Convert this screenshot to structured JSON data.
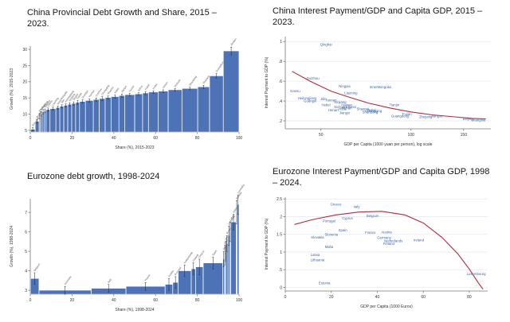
{
  "colors": {
    "bar_fill": "#4d73b6",
    "bar_stroke": "#ffffff",
    "error_bar": "#2a2a2a",
    "scatter_label": "#3b66ad",
    "fit_curve": "#b5293e",
    "axis": "#7a7a7a",
    "grid": "#e4e9f1",
    "tick_text": "#333333",
    "bar_label": "#555555",
    "title_text": "#161616"
  },
  "chart_data": [
    {
      "type": "bar",
      "title": "China Provincial Debt Growth and Share, 2015 – 2023.",
      "xlabel": "Share (%), 2015-2023",
      "ylabel": "Growth (%), 2015-2023",
      "xlim": [
        0,
        100
      ],
      "ylim": [
        4.5,
        31
      ],
      "xticks": [
        0,
        20,
        40,
        60,
        80,
        100
      ],
      "yticks": [
        5,
        10,
        15,
        20,
        25,
        30
      ],
      "categories": [
        "Shanghai",
        "Beijing",
        "Tibet",
        "Hainan",
        "Ningxia",
        "Qinghai",
        "Gansu",
        "Liaoning",
        "InnerMongolia",
        "Jilin",
        "Heilongjiang",
        "Xinjiang",
        "Shanxi",
        "Tianjin",
        "Guangxi",
        "Yunnan",
        "Guizhou",
        "Chongqing",
        "Shaanxi",
        "Hebei",
        "Jiangxi",
        "Hunan",
        "Anhui",
        "Fujian",
        "Hubei",
        "Henan",
        "Sichuan",
        "Shandong",
        "Zhejiang",
        "Guangdong",
        "Jiangsu"
      ],
      "shares": [
        2.5,
        2,
        0.5,
        1,
        1,
        1,
        2,
        3,
        2,
        2,
        2,
        2,
        2,
        2,
        3,
        4,
        3,
        3,
        3,
        4,
        3,
        5,
        4,
        3,
        5,
        5,
        7,
        8,
        6,
        7,
        8
      ],
      "values": [
        5.3,
        7.8,
        9.4,
        10.1,
        10.7,
        11.0,
        11.4,
        11.7,
        12.0,
        12.4,
        12.7,
        13.0,
        13.3,
        13.6,
        13.9,
        14.2,
        14.5,
        14.8,
        15.1,
        15.4,
        15.7,
        16.0,
        16.2,
        16.5,
        16.8,
        17.1,
        17.5,
        17.9,
        18.4,
        21.8,
        29.5
      ],
      "errors": [
        0.5,
        0.6,
        0.8,
        0.7,
        0.7,
        0.6,
        0.5,
        0.5,
        0.5,
        0.5,
        0.5,
        0.5,
        0.5,
        0.6,
        0.5,
        0.5,
        0.5,
        0.6,
        0.5,
        0.5,
        0.5,
        0.4,
        0.4,
        0.5,
        0.4,
        0.4,
        0.4,
        0.4,
        0.5,
        0.7,
        1.2
      ]
    },
    {
      "type": "scatter",
      "title": "China Interest Payment/GDP and Capita GDP, 2015 – 2023.",
      "xlabel": "GDP per Capita (1000 yuan per person), log scale",
      "ylabel": "Interest Payment to GDP (%)",
      "xlog": true,
      "xlim": [
        38,
        185
      ],
      "ylim": [
        0.12,
        1.05
      ],
      "xticks": [
        50,
        100,
        150
      ],
      "yticks": [
        0.2,
        0.4,
        0.6,
        0.8,
        1
      ],
      "ytick_labels": [
        ".2",
        ".4",
        ".6",
        ".8",
        "1"
      ],
      "points": [
        {
          "label": "Qinghai",
          "x": 52,
          "y": 0.97
        },
        {
          "label": "Guizhou",
          "x": 47,
          "y": 0.63
        },
        {
          "label": "Ningxia",
          "x": 60,
          "y": 0.55
        },
        {
          "label": "InnerMongolia",
          "x": 79,
          "y": 0.54
        },
        {
          "label": "Gansu",
          "x": 41,
          "y": 0.5
        },
        {
          "label": "Liaoning",
          "x": 63,
          "y": 0.48
        },
        {
          "label": "Heilongjiang",
          "x": 45,
          "y": 0.43
        },
        {
          "label": "Jilin",
          "x": 51,
          "y": 0.42
        },
        {
          "label": "Yunnan",
          "x": 54,
          "y": 0.41
        },
        {
          "label": "Guangxi",
          "x": 46,
          "y": 0.4
        },
        {
          "label": "Xinjiang",
          "x": 58,
          "y": 0.39
        },
        {
          "label": "Hainan",
          "x": 61,
          "y": 0.36
        },
        {
          "label": "Hebei",
          "x": 52,
          "y": 0.36
        },
        {
          "label": "Tianjin",
          "x": 88,
          "y": 0.36
        },
        {
          "label": "Shanxi",
          "x": 63,
          "y": 0.34
        },
        {
          "label": "Sichuan",
          "x": 58,
          "y": 0.34
        },
        {
          "label": "Hunan",
          "x": 61,
          "y": 0.33
        },
        {
          "label": "Anhui",
          "x": 59,
          "y": 0.32
        },
        {
          "label": "Shaanxi",
          "x": 69,
          "y": 0.32
        },
        {
          "label": "Henan",
          "x": 55,
          "y": 0.31
        },
        {
          "label": "Hubei",
          "x": 74,
          "y": 0.31
        },
        {
          "label": "Chongqing",
          "x": 75,
          "y": 0.3
        },
        {
          "label": "Shandong",
          "x": 73,
          "y": 0.29
        },
        {
          "label": "Jiangxi",
          "x": 60,
          "y": 0.28
        },
        {
          "label": "Fujian",
          "x": 97,
          "y": 0.27
        },
        {
          "label": "Guangdong",
          "x": 92,
          "y": 0.25
        },
        {
          "label": "Jiangsu",
          "x": 122,
          "y": 0.25
        },
        {
          "label": "Zhejiang",
          "x": 112,
          "y": 0.24
        },
        {
          "label": "Beijing",
          "x": 155,
          "y": 0.22
        },
        {
          "label": "Shanghai",
          "x": 168,
          "y": 0.21
        }
      ],
      "curve": [
        [
          40,
          0.7
        ],
        [
          46,
          0.6
        ],
        [
          54,
          0.5
        ],
        [
          62,
          0.44
        ],
        [
          72,
          0.38
        ],
        [
          85,
          0.33
        ],
        [
          100,
          0.29
        ],
        [
          118,
          0.26
        ],
        [
          140,
          0.24
        ],
        [
          160,
          0.225
        ],
        [
          178,
          0.22
        ]
      ]
    },
    {
      "type": "bar",
      "title": "Eurozone debt growth, 1998-2024",
      "xlabel": "Share (%), 1998-2024",
      "ylabel": "Growth (%), 1998-2024",
      "xlim": [
        0,
        100
      ],
      "ylim": [
        2.8,
        7.7
      ],
      "xticks": [
        0,
        20,
        40,
        60,
        80,
        100
      ],
      "yticks": [
        3,
        4,
        5,
        6,
        7
      ],
      "categories": [
        "Belgium",
        "Germany",
        "Italy",
        "France",
        "Austria",
        "Portugal",
        "Netherlands",
        "Finland",
        "Greece",
        "Spain",
        "Slovenia",
        "Cyprus",
        "Malta",
        "Slovakia",
        "Lithuania",
        "Latvia",
        "Ireland",
        "Estonia",
        "Luxembourg"
      ],
      "shares": [
        4,
        24,
        16,
        18,
        3.5,
        2.5,
        6,
        2,
        3.5,
        9,
        0.8,
        0.4,
        0.2,
        1,
        0.8,
        0.5,
        2.5,
        0.4,
        0.9
      ],
      "values": [
        3.6,
        3.0,
        3.1,
        3.2,
        3.3,
        3.4,
        4.0,
        4.1,
        4.2,
        4.4,
        4.6,
        4.8,
        5.0,
        5.4,
        5.8,
        6.0,
        6.5,
        7.0,
        7.4
      ],
      "errors": [
        0.3,
        0.2,
        0.2,
        0.2,
        0.3,
        0.3,
        0.3,
        0.3,
        0.4,
        0.3,
        0.4,
        0.5,
        0.5,
        0.4,
        0.5,
        0.5,
        0.4,
        0.6,
        0.5
      ]
    },
    {
      "type": "scatter",
      "title": "Eurozone Interest Payment/GDP and Capita GDP, 1998 – 2024.",
      "xlabel": "GDP per Capita (1000 Euros)",
      "ylabel": "Interest Payment to GDP (%)",
      "xlog": false,
      "xlim": [
        0,
        88
      ],
      "ylim": [
        -0.1,
        2.55
      ],
      "xticks": [
        0,
        20,
        40,
        60,
        80
      ],
      "yticks": [
        0,
        0.5,
        1,
        1.5,
        2,
        2.5
      ],
      "ytick_labels": [
        "0",
        ".5",
        "1",
        "1.5",
        "2",
        "2.5"
      ],
      "points": [
        {
          "label": "Greece",
          "x": 22,
          "y": 2.35
        },
        {
          "label": "Italy",
          "x": 31,
          "y": 2.28
        },
        {
          "label": "Belgium",
          "x": 38,
          "y": 2.02
        },
        {
          "label": "Cyprus",
          "x": 27,
          "y": 1.96
        },
        {
          "label": "Portugal",
          "x": 19,
          "y": 1.88
        },
        {
          "label": "Spain",
          "x": 25,
          "y": 1.62
        },
        {
          "label": "Austria",
          "x": 44,
          "y": 1.56
        },
        {
          "label": "France",
          "x": 37,
          "y": 1.55
        },
        {
          "label": "Slovenia",
          "x": 20,
          "y": 1.5
        },
        {
          "label": "Slovakia",
          "x": 14,
          "y": 1.42
        },
        {
          "label": "Germany",
          "x": 43,
          "y": 1.4
        },
        {
          "label": "Ireland",
          "x": 58,
          "y": 1.34
        },
        {
          "label": "Netherlands",
          "x": 47,
          "y": 1.32
        },
        {
          "label": "Finland",
          "x": 45,
          "y": 1.24
        },
        {
          "label": "Malta",
          "x": 19,
          "y": 1.15
        },
        {
          "label": "Latvia",
          "x": 13,
          "y": 0.92
        },
        {
          "label": "Lithuania",
          "x": 14,
          "y": 0.78
        },
        {
          "label": "Luxembourg",
          "x": 83,
          "y": 0.38
        },
        {
          "label": "Estonia",
          "x": 17,
          "y": 0.12
        }
      ],
      "curve": [
        [
          4,
          1.78
        ],
        [
          12,
          1.92
        ],
        [
          22,
          2.05
        ],
        [
          32,
          2.13
        ],
        [
          42,
          2.15
        ],
        [
          52,
          2.05
        ],
        [
          60,
          1.82
        ],
        [
          68,
          1.42
        ],
        [
          75,
          0.95
        ],
        [
          80,
          0.52
        ],
        [
          84,
          0.12
        ],
        [
          86,
          -0.05
        ]
      ]
    }
  ]
}
